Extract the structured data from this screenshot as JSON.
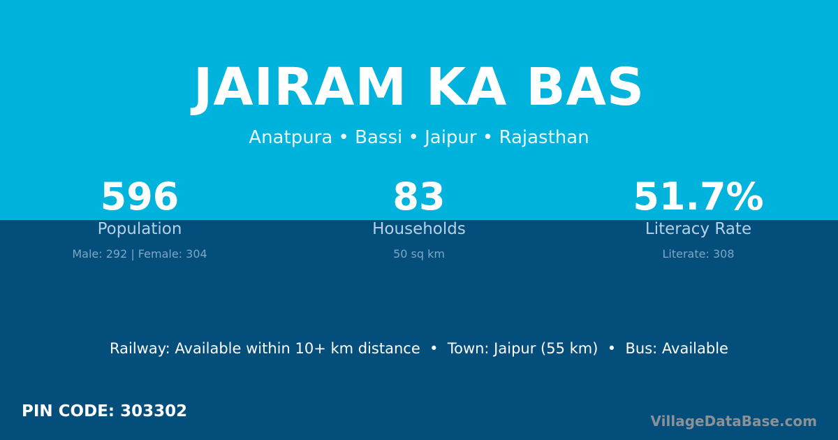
{
  "colors": {
    "top_band": "#00b3dc",
    "bottom_band": "#034e7b"
  },
  "header": {
    "title": "JAIRAM KA BAS",
    "location": "Anatpura • Bassi • Jaipur • Rajasthan"
  },
  "stats": [
    {
      "value": "596",
      "label": "Population",
      "detail": "Male: 292 | Female: 304"
    },
    {
      "value": "83",
      "label": "Households",
      "detail": "50 sq km"
    },
    {
      "value": "51.7%",
      "label": "Literacy Rate",
      "detail": "Literate: 308"
    }
  ],
  "facts": "Railway: Available within 10+ km distance  •  Town: Jaipur (55 km)  •  Bus: Available",
  "pin_code": "PIN CODE: 303302",
  "brand": "VillageDataBase.com"
}
